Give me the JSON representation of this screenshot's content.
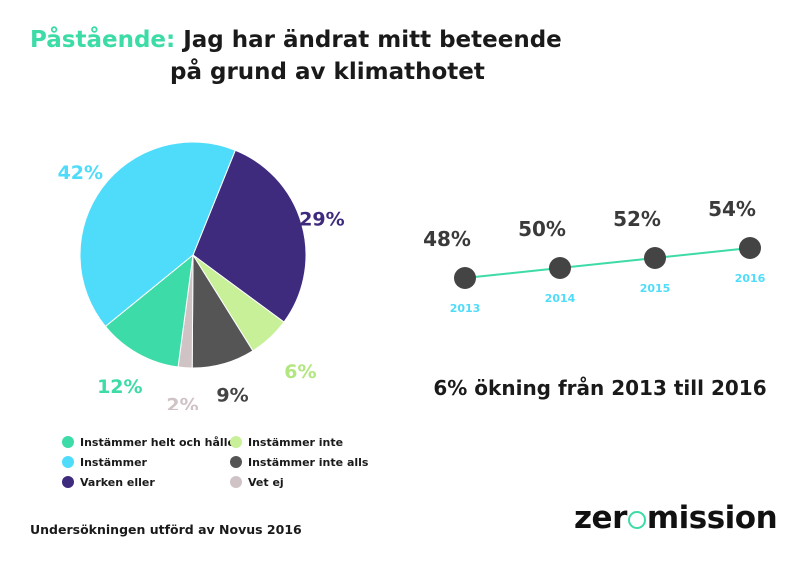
{
  "title": {
    "lead": "Påstående:",
    "line1": "Jag har ändrat mitt beteende",
    "line2": "på grund av klimathotet"
  },
  "chart_data": [
    {
      "type": "pie",
      "series": [
        {
          "name": "Instämmer helt och hållet",
          "value": 12,
          "label": "12%",
          "color": "#3ddba7"
        },
        {
          "name": "Instämmer",
          "value": 42,
          "label": "42%",
          "color": "#4fdcfa"
        },
        {
          "name": "Varken eller",
          "value": 29,
          "label": "29%",
          "color": "#3f2b7e"
        },
        {
          "name": "Instämmer inte",
          "value": 6,
          "label": "6%",
          "color": "#c8f099"
        },
        {
          "name": "Instämmer inte alls",
          "value": 9,
          "label": "9%",
          "color": "#555555"
        },
        {
          "name": "Vet ej",
          "value": 2,
          "label": "2%",
          "color": "#cfc3c5"
        }
      ],
      "legend_placement": "bottom"
    },
    {
      "type": "line",
      "x": [
        "2013",
        "2014",
        "2015",
        "2016"
      ],
      "values": [
        48,
        50,
        52,
        54
      ],
      "value_labels": [
        "48%",
        "50%",
        "52%",
        "54%"
      ],
      "line_color": "#3ddba7",
      "point_color": "#444444",
      "label_color": "#4fdcfa"
    }
  ],
  "summary": "6% ökning från 2013 till 2016",
  "footer": "Undersökningen utförd av Novus 2016",
  "logo": {
    "before": "zer",
    "after": "mission"
  }
}
